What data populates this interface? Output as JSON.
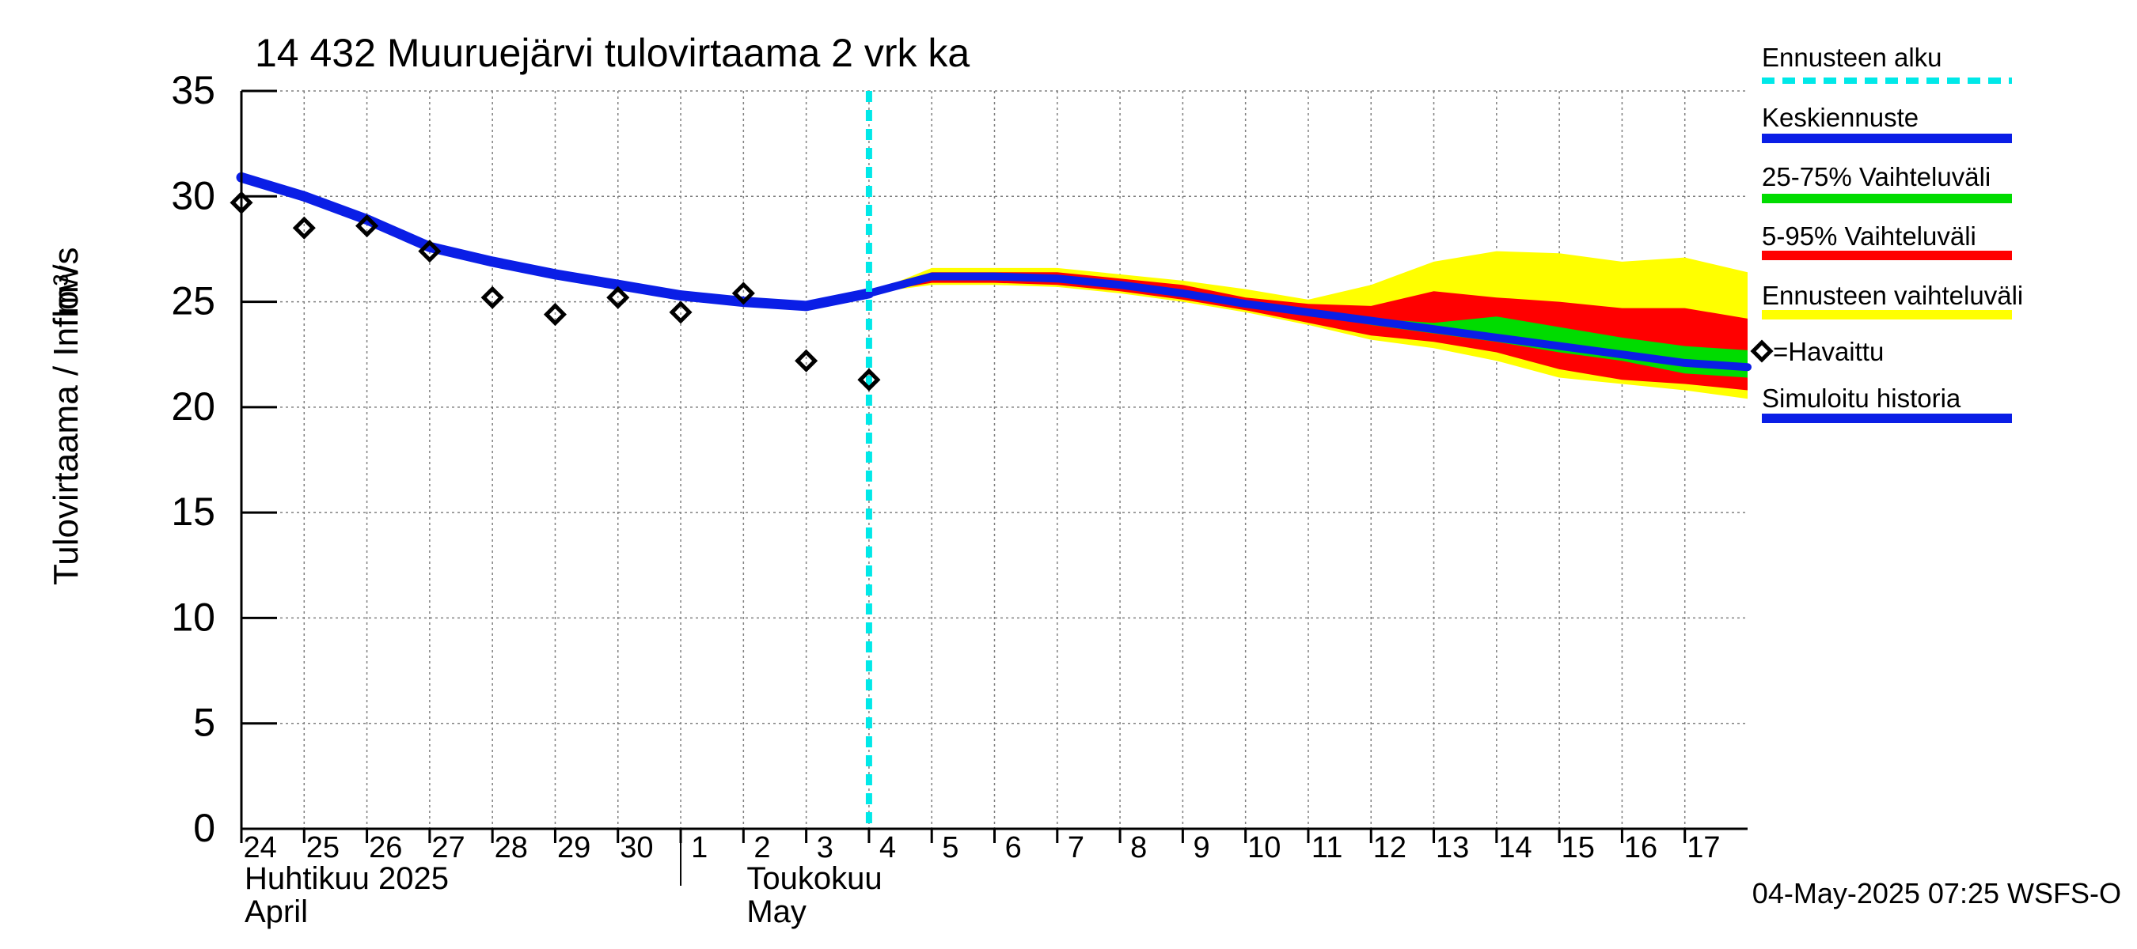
{
  "chart_data": {
    "type": "line",
    "title": "14 432 Muuruejärvi tulovirtaama 2 vrk ka",
    "ylabel_left": "Tulovirtaama / Inflow",
    "ylabel_unit": "m³/s",
    "ylim": [
      0,
      35
    ],
    "yticks": [
      0,
      5,
      10,
      15,
      20,
      25,
      30,
      35
    ],
    "xlim": [
      0,
      24
    ],
    "day_labels": [
      "24",
      "25",
      "26",
      "27",
      "28",
      "29",
      "30",
      "1",
      "2",
      "3",
      "4",
      "5",
      "6",
      "7",
      "8",
      "9",
      "10",
      "11",
      "12",
      "13",
      "14",
      "15",
      "16",
      "17"
    ],
    "month_labels": [
      {
        "fi": "Huhtikuu  2025",
        "en": "April",
        "at_day_index": 0
      },
      {
        "fi": "Toukokuu",
        "en": "May",
        "at_day_index": 8
      }
    ],
    "forecast_start_x": 10.0,
    "observed": {
      "name": "=Havaittu",
      "x": [
        0,
        1,
        2,
        3,
        4,
        5,
        6,
        7,
        8,
        9,
        10
      ],
      "y": [
        29.7,
        28.5,
        28.6,
        27.4,
        25.2,
        24.4,
        25.2,
        24.5,
        25.4,
        22.2,
        21.3
      ]
    },
    "simulated_history": {
      "name": "Simuloitu historia",
      "x": [
        0,
        1,
        2,
        3,
        4,
        5,
        6,
        7,
        8,
        9,
        10
      ],
      "y": [
        30.9,
        30.0,
        28.9,
        27.6,
        26.9,
        26.3,
        25.8,
        25.3,
        25.0,
        24.8,
        25.4
      ]
    },
    "median_forecast": {
      "name": "Keskiennuste",
      "x": [
        10,
        11,
        12,
        13,
        14,
        15,
        16,
        17,
        18,
        19,
        20,
        21,
        22,
        23,
        24
      ],
      "y": [
        25.4,
        26.2,
        26.2,
        26.1,
        25.8,
        25.4,
        24.9,
        24.5,
        24.1,
        23.7,
        23.3,
        22.9,
        22.5,
        22.1,
        21.9
      ]
    },
    "band_25_75": {
      "name": "25-75% Vaihteluväli",
      "x": [
        10,
        11,
        12,
        13,
        14,
        15,
        16,
        17,
        18,
        19,
        20,
        21,
        22,
        23,
        24
      ],
      "low": [
        25.4,
        26.1,
        26.1,
        26.0,
        25.7,
        25.3,
        24.8,
        24.4,
        23.9,
        23.5,
        23.1,
        22.6,
        22.2,
        21.6,
        21.4
      ],
      "high": [
        25.4,
        26.3,
        26.3,
        26.2,
        25.9,
        25.5,
        25.0,
        24.6,
        24.2,
        24.0,
        24.3,
        23.8,
        23.3,
        22.9,
        22.7
      ]
    },
    "band_5_95": {
      "name": "5-95% Vaihteluväli",
      "x": [
        10,
        11,
        12,
        13,
        14,
        15,
        16,
        17,
        18,
        19,
        20,
        21,
        22,
        23,
        24
      ],
      "low": [
        25.4,
        25.9,
        25.9,
        25.8,
        25.5,
        25.1,
        24.6,
        24.0,
        23.4,
        23.1,
        22.6,
        21.8,
        21.3,
        21.1,
        20.8
      ],
      "high": [
        25.4,
        26.4,
        26.4,
        26.4,
        26.1,
        25.8,
        25.2,
        24.9,
        24.8,
        25.5,
        25.2,
        25.0,
        24.7,
        24.7,
        24.2
      ]
    },
    "band_full": {
      "name": "Ennusteen vaihteluväli",
      "x": [
        10,
        11,
        12,
        13,
        14,
        15,
        16,
        17,
        18,
        19,
        20,
        21,
        22,
        23,
        24
      ],
      "low": [
        25.4,
        25.8,
        25.8,
        25.7,
        25.4,
        25.0,
        24.5,
        23.9,
        23.2,
        22.8,
        22.2,
        21.4,
        21.1,
        20.8,
        20.4
      ],
      "high": [
        25.4,
        26.6,
        26.6,
        26.6,
        26.3,
        26.0,
        25.6,
        25.1,
        25.8,
        26.9,
        27.4,
        27.3,
        26.9,
        27.1,
        26.4
      ]
    },
    "legend": [
      {
        "label": "Ennusteen alku",
        "color": "#00e8e8",
        "style": "dashed"
      },
      {
        "label": "Keskiennuste",
        "color": "#0a1ee6",
        "style": "solid"
      },
      {
        "label": "25-75% Vaihteluväli",
        "color": "#00dc00",
        "style": "solid"
      },
      {
        "label": "5-95% Vaihteluväli",
        "color": "#ff0000",
        "style": "solid"
      },
      {
        "label": "Ennusteen vaihteluväli",
        "color": "#ffff00",
        "style": "solid"
      },
      {
        "label": "=Havaittu",
        "color": "#000000",
        "style": "marker"
      },
      {
        "label": "Simuloitu historia",
        "color": "#0a1ee6",
        "style": "solid"
      }
    ],
    "colors": {
      "history": "#0a1ee6",
      "median": "#0a1ee6",
      "band_25_75": "#00dc00",
      "band_5_95": "#ff0000",
      "band_full": "#ffff00",
      "forecast_start": "#00e8e8",
      "grid": "#808080"
    },
    "footer": "04-May-2025 07:25 WSFS-O"
  }
}
